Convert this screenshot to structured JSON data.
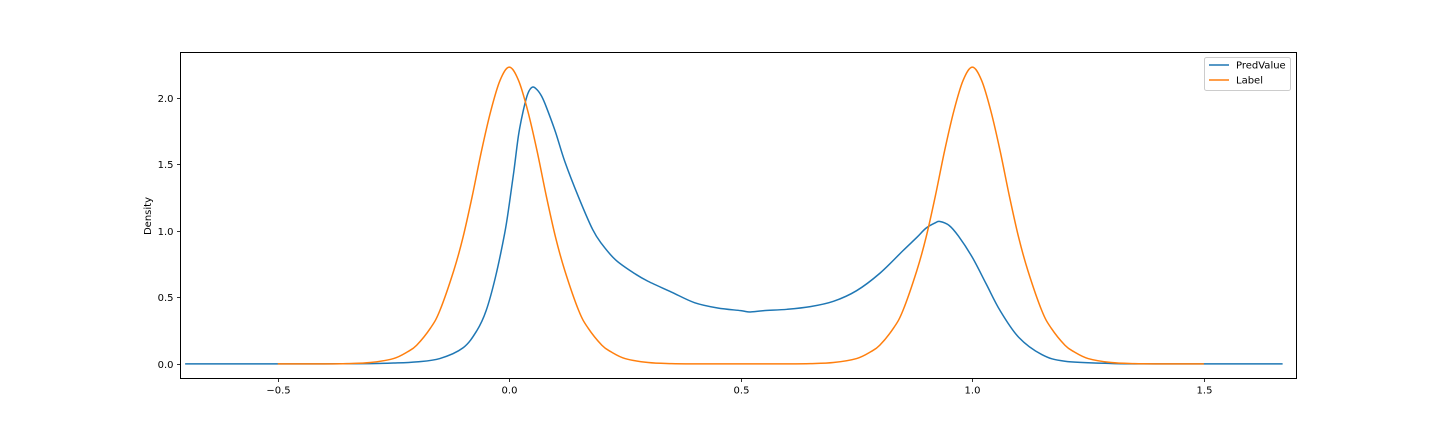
{
  "chart_data": {
    "type": "line",
    "title": "",
    "xlabel": "",
    "ylabel": "Density",
    "xlim": [
      -0.71,
      1.7
    ],
    "ylim": [
      -0.11,
      2.34
    ],
    "xticks": [
      -0.5,
      0.0,
      0.5,
      1.0,
      1.5
    ],
    "xtick_labels": [
      "−0.5",
      "0.0",
      "0.5",
      "1.0",
      "1.5"
    ],
    "yticks": [
      0.0,
      0.5,
      1.0,
      1.5,
      2.0
    ],
    "ytick_labels": [
      "0.0",
      "0.5",
      "1.0",
      "1.5",
      "2.0"
    ],
    "grid": false,
    "legend_position": "top-right",
    "series": [
      {
        "name": "PredValue",
        "color": "#1f77b4",
        "points": [
          [
            -0.7,
            0.0
          ],
          [
            -0.5,
            0.0
          ],
          [
            -0.4,
            0.0
          ],
          [
            -0.3,
            0.002
          ],
          [
            -0.25,
            0.006
          ],
          [
            -0.2,
            0.015
          ],
          [
            -0.15,
            0.04
          ],
          [
            -0.1,
            0.12
          ],
          [
            -0.07,
            0.25
          ],
          [
            -0.05,
            0.4
          ],
          [
            -0.03,
            0.65
          ],
          [
            -0.01,
            0.98
          ],
          [
            0.0,
            1.2
          ],
          [
            0.01,
            1.45
          ],
          [
            0.02,
            1.72
          ],
          [
            0.03,
            1.9
          ],
          [
            0.04,
            2.03
          ],
          [
            0.05,
            2.08
          ],
          [
            0.06,
            2.06
          ],
          [
            0.07,
            2.01
          ],
          [
            0.08,
            1.93
          ],
          [
            0.1,
            1.74
          ],
          [
            0.12,
            1.52
          ],
          [
            0.15,
            1.25
          ],
          [
            0.18,
            1.01
          ],
          [
            0.2,
            0.9
          ],
          [
            0.23,
            0.78
          ],
          [
            0.27,
            0.68
          ],
          [
            0.3,
            0.62
          ],
          [
            0.35,
            0.54
          ],
          [
            0.4,
            0.46
          ],
          [
            0.45,
            0.42
          ],
          [
            0.5,
            0.4
          ],
          [
            0.52,
            0.39
          ],
          [
            0.55,
            0.4
          ],
          [
            0.6,
            0.41
          ],
          [
            0.65,
            0.43
          ],
          [
            0.7,
            0.47
          ],
          [
            0.75,
            0.55
          ],
          [
            0.8,
            0.68
          ],
          [
            0.85,
            0.85
          ],
          [
            0.88,
            0.95
          ],
          [
            0.9,
            1.02
          ],
          [
            0.92,
            1.06
          ],
          [
            0.93,
            1.07
          ],
          [
            0.95,
            1.04
          ],
          [
            0.97,
            0.96
          ],
          [
            1.0,
            0.8
          ],
          [
            1.03,
            0.6
          ],
          [
            1.06,
            0.4
          ],
          [
            1.1,
            0.2
          ],
          [
            1.15,
            0.07
          ],
          [
            1.2,
            0.02
          ],
          [
            1.3,
            0.003
          ],
          [
            1.4,
            0.0
          ],
          [
            1.5,
            0.0
          ],
          [
            1.6,
            0.0
          ],
          [
            1.67,
            0.0
          ]
        ]
      },
      {
        "name": "Label",
        "color": "#ff7f0e",
        "points": [
          [
            -0.5,
            0.0
          ],
          [
            -0.4,
            0.0
          ],
          [
            -0.35,
            0.002
          ],
          [
            -0.3,
            0.01
          ],
          [
            -0.25,
            0.04
          ],
          [
            -0.22,
            0.09
          ],
          [
            -0.2,
            0.14
          ],
          [
            -0.17,
            0.27
          ],
          [
            -0.15,
            0.4
          ],
          [
            -0.12,
            0.7
          ],
          [
            -0.1,
            0.95
          ],
          [
            -0.08,
            1.26
          ],
          [
            -0.06,
            1.6
          ],
          [
            -0.04,
            1.9
          ],
          [
            -0.02,
            2.13
          ],
          [
            0.0,
            2.23
          ],
          [
            0.02,
            2.13
          ],
          [
            0.04,
            1.9
          ],
          [
            0.06,
            1.6
          ],
          [
            0.08,
            1.26
          ],
          [
            0.1,
            0.95
          ],
          [
            0.12,
            0.7
          ],
          [
            0.15,
            0.4
          ],
          [
            0.17,
            0.27
          ],
          [
            0.2,
            0.14
          ],
          [
            0.22,
            0.09
          ],
          [
            0.25,
            0.04
          ],
          [
            0.3,
            0.01
          ],
          [
            0.35,
            0.002
          ],
          [
            0.4,
            0.0
          ],
          [
            0.5,
            0.0
          ],
          [
            0.6,
            0.0
          ],
          [
            0.65,
            0.002
          ],
          [
            0.7,
            0.01
          ],
          [
            0.75,
            0.04
          ],
          [
            0.78,
            0.09
          ],
          [
            0.8,
            0.14
          ],
          [
            0.83,
            0.27
          ],
          [
            0.85,
            0.4
          ],
          [
            0.88,
            0.7
          ],
          [
            0.9,
            0.95
          ],
          [
            0.92,
            1.26
          ],
          [
            0.94,
            1.6
          ],
          [
            0.96,
            1.9
          ],
          [
            0.98,
            2.13
          ],
          [
            1.0,
            2.23
          ],
          [
            1.02,
            2.13
          ],
          [
            1.04,
            1.9
          ],
          [
            1.06,
            1.6
          ],
          [
            1.08,
            1.26
          ],
          [
            1.1,
            0.95
          ],
          [
            1.12,
            0.7
          ],
          [
            1.15,
            0.4
          ],
          [
            1.17,
            0.27
          ],
          [
            1.2,
            0.14
          ],
          [
            1.22,
            0.09
          ],
          [
            1.25,
            0.04
          ],
          [
            1.3,
            0.01
          ],
          [
            1.35,
            0.002
          ],
          [
            1.4,
            0.0
          ],
          [
            1.5,
            0.0
          ]
        ]
      }
    ]
  }
}
